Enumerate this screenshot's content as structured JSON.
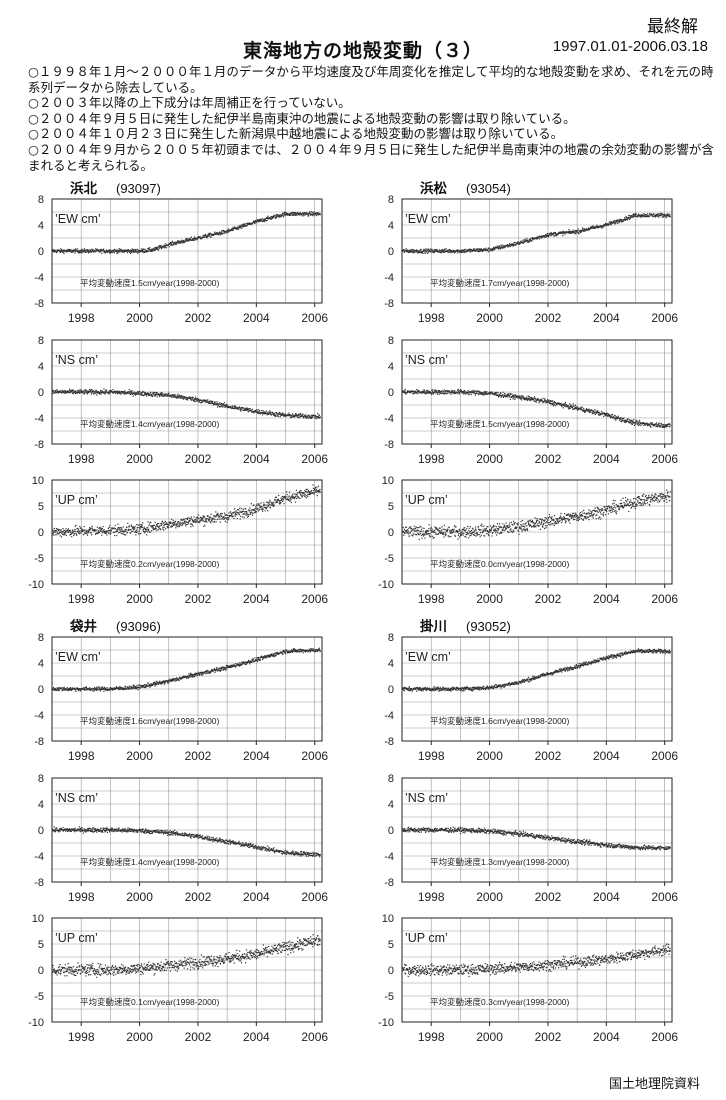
{
  "header": {
    "title": "東海地方の地殻変動（３）",
    "final_label": "最終解",
    "period": "1997.01.01-2006.03.18"
  },
  "notes": [
    "○１９９８年１月～２０００年１月のデータから平均速度及び年周変化を推定して平均的な地殻変動を求め、それを元の時系列データから除去している。",
    "○２００３年以降の上下成分は年周補正を行っていない。",
    "○２００４年９月５日に発生した紀伊半島南東沖の地震による地殻変動の影響は取り除いている。",
    "○２００４年１０月２３日に発生した新潟県中越地震による地殻変動の影響は取り除いている。",
    "○２００４年９月から２００５年初頭までは、２００４年９月５日に発生した紀伊半島南東沖の地震の余効変動の影響が含まれると考えられる。"
  ],
  "footer": {
    "source": "国土地理院資料"
  },
  "chart_data": [
    {
      "type": "scatter",
      "station": "浜北",
      "code": "(93097)",
      "component": "EW cm",
      "ylim": [
        -8,
        8
      ],
      "yticks": [
        8,
        4,
        0,
        -4,
        -8
      ],
      "xlim": [
        1997.0,
        2006.25
      ],
      "xticks": [
        1998,
        2000,
        2002,
        2004,
        2006
      ],
      "rate_text": "平均変動速度1.5cm/year(1998-2000)",
      "noise": 0.3,
      "trend": [
        [
          1997.0,
          0.0
        ],
        [
          1998.0,
          0.0
        ],
        [
          1999.0,
          0.0
        ],
        [
          2000.0,
          0.0
        ],
        [
          2000.5,
          0.2
        ],
        [
          2001.0,
          1.0
        ],
        [
          2002.0,
          2.0
        ],
        [
          2003.0,
          3.0
        ],
        [
          2004.0,
          4.5
        ],
        [
          2005.0,
          5.7
        ],
        [
          2006.2,
          5.7
        ]
      ]
    },
    {
      "type": "scatter",
      "station": "浜松",
      "code": "(93054)",
      "component": "EW cm",
      "ylim": [
        -8,
        8
      ],
      "yticks": [
        8,
        4,
        0,
        -4,
        -8
      ],
      "xlim": [
        1997.0,
        2006.25
      ],
      "xticks": [
        1998,
        2000,
        2002,
        2004,
        2006
      ],
      "rate_text": "平均変動速度1.7cm/year(1998-2000)",
      "noise": 0.3,
      "trend": [
        [
          1997.0,
          0.0
        ],
        [
          1999.0,
          0.0
        ],
        [
          2000.0,
          0.2
        ],
        [
          2001.0,
          1.2
        ],
        [
          2002.0,
          2.5
        ],
        [
          2003.0,
          3.0
        ],
        [
          2004.0,
          4.0
        ],
        [
          2005.0,
          5.5
        ],
        [
          2006.2,
          5.5
        ]
      ]
    },
    {
      "type": "scatter",
      "station": "浜北",
      "code": "",
      "component": "NS cm",
      "ylim": [
        -8,
        8
      ],
      "yticks": [
        8,
        4,
        0,
        -4,
        -8
      ],
      "xlim": [
        1997.0,
        2006.25
      ],
      "xticks": [
        1998,
        2000,
        2002,
        2004,
        2006
      ],
      "rate_text": "平均変動速度1.4cm/year(1998-2000)",
      "noise": 0.35,
      "trend": [
        [
          1997.0,
          0.0
        ],
        [
          1999.0,
          0.0
        ],
        [
          2000.0,
          -0.2
        ],
        [
          2001.0,
          -0.5
        ],
        [
          2002.0,
          -1.2
        ],
        [
          2003.0,
          -2.2
        ],
        [
          2004.0,
          -3.0
        ],
        [
          2005.0,
          -3.6
        ],
        [
          2006.2,
          -3.8
        ]
      ]
    },
    {
      "type": "scatter",
      "station": "浜松",
      "code": "",
      "component": "NS cm",
      "ylim": [
        -8,
        8
      ],
      "yticks": [
        8,
        4,
        0,
        -4,
        -8
      ],
      "xlim": [
        1997.0,
        2006.25
      ],
      "xticks": [
        1998,
        2000,
        2002,
        2004,
        2006
      ],
      "rate_text": "平均変動速度1.5cm/year(1998-2000)",
      "noise": 0.35,
      "trend": [
        [
          1997.0,
          0.0
        ],
        [
          1999.0,
          0.0
        ],
        [
          2000.0,
          -0.2
        ],
        [
          2001.0,
          -0.8
        ],
        [
          2002.0,
          -1.5
        ],
        [
          2003.0,
          -2.5
        ],
        [
          2004.0,
          -3.5
        ],
        [
          2005.0,
          -4.8
        ],
        [
          2006.2,
          -5.2
        ]
      ]
    },
    {
      "type": "scatter",
      "station": "浜北",
      "code": "",
      "component": "UP cm",
      "ylim": [
        -10,
        10
      ],
      "yticks": [
        10,
        5,
        0,
        -5,
        -10
      ],
      "xlim": [
        1997.0,
        2006.25
      ],
      "xticks": [
        1998,
        2000,
        2002,
        2004,
        2006
      ],
      "rate_text": "平均変動速度0.2cm/year(1998-2000)",
      "noise": 1.0,
      "trend": [
        [
          1997.0,
          0.0
        ],
        [
          1999.0,
          0.3
        ],
        [
          2000.0,
          0.5
        ],
        [
          2001.0,
          1.5
        ],
        [
          2002.0,
          2.3
        ],
        [
          2003.0,
          3.0
        ],
        [
          2004.0,
          4.5
        ],
        [
          2005.0,
          6.5
        ],
        [
          2006.2,
          8.0
        ]
      ]
    },
    {
      "type": "scatter",
      "station": "浜松",
      "code": "",
      "component": "UP cm",
      "ylim": [
        -10,
        10
      ],
      "yticks": [
        10,
        5,
        0,
        -5,
        -10
      ],
      "xlim": [
        1997.0,
        2006.25
      ],
      "xticks": [
        1998,
        2000,
        2002,
        2004,
        2006
      ],
      "rate_text": "平均変動速度0.0cm/year(1998-2000)",
      "noise": 1.1,
      "trend": [
        [
          1997.0,
          0.0
        ],
        [
          1999.0,
          0.0
        ],
        [
          2000.0,
          0.3
        ],
        [
          2001.0,
          1.0
        ],
        [
          2002.0,
          2.0
        ],
        [
          2003.0,
          3.0
        ],
        [
          2004.0,
          4.2
        ],
        [
          2005.0,
          5.8
        ],
        [
          2006.2,
          7.0
        ]
      ]
    },
    {
      "type": "scatter",
      "station": "袋井",
      "code": "(93096)",
      "component": "EW cm",
      "ylim": [
        -8,
        8
      ],
      "yticks": [
        8,
        4,
        0,
        -4,
        -8
      ],
      "xlim": [
        1997.0,
        2006.25
      ],
      "xticks": [
        1998,
        2000,
        2002,
        2004,
        2006
      ],
      "rate_text": "平均変動速度1.6cm/year(1998-2000)",
      "noise": 0.3,
      "trend": [
        [
          1997.0,
          0.0
        ],
        [
          1999.0,
          0.0
        ],
        [
          2000.0,
          0.3
        ],
        [
          2001.0,
          1.2
        ],
        [
          2002.0,
          2.3
        ],
        [
          2003.0,
          3.3
        ],
        [
          2004.0,
          4.5
        ],
        [
          2005.0,
          5.8
        ],
        [
          2006.2,
          6.0
        ]
      ]
    },
    {
      "type": "scatter",
      "station": "掛川",
      "code": "(93052)",
      "component": "EW cm",
      "ylim": [
        -8,
        8
      ],
      "yticks": [
        8,
        4,
        0,
        -4,
        -8
      ],
      "xlim": [
        1997.0,
        2006.25
      ],
      "xticks": [
        1998,
        2000,
        2002,
        2004,
        2006
      ],
      "rate_text": "平均変動速度1.6cm/year(1998-2000)",
      "noise": 0.3,
      "trend": [
        [
          1997.0,
          0.0
        ],
        [
          1999.0,
          0.0
        ],
        [
          2000.0,
          0.2
        ],
        [
          2001.0,
          1.0
        ],
        [
          2002.0,
          2.3
        ],
        [
          2003.0,
          3.5
        ],
        [
          2004.0,
          4.8
        ],
        [
          2005.0,
          5.8
        ],
        [
          2006.2,
          5.8
        ]
      ]
    },
    {
      "type": "scatter",
      "station": "袋井",
      "code": "",
      "component": "NS cm",
      "ylim": [
        -8,
        8
      ],
      "yticks": [
        8,
        4,
        0,
        -4,
        -8
      ],
      "xlim": [
        1997.0,
        2006.25
      ],
      "xticks": [
        1998,
        2000,
        2002,
        2004,
        2006
      ],
      "rate_text": "平均変動速度1.4cm/year(1998-2000)",
      "noise": 0.35,
      "trend": [
        [
          1997.0,
          0.0
        ],
        [
          1999.0,
          0.0
        ],
        [
          2000.0,
          -0.1
        ],
        [
          2001.0,
          -0.4
        ],
        [
          2002.0,
          -1.0
        ],
        [
          2003.0,
          -1.8
        ],
        [
          2004.0,
          -2.6
        ],
        [
          2005.0,
          -3.5
        ],
        [
          2006.2,
          -3.8
        ]
      ]
    },
    {
      "type": "scatter",
      "station": "掛川",
      "code": "",
      "component": "NS cm",
      "ylim": [
        -8,
        8
      ],
      "yticks": [
        8,
        4,
        0,
        -4,
        -8
      ],
      "xlim": [
        1997.0,
        2006.25
      ],
      "xticks": [
        1998,
        2000,
        2002,
        2004,
        2006
      ],
      "rate_text": "平均変動速度1.3cm/year(1998-2000)",
      "noise": 0.35,
      "trend": [
        [
          1997.0,
          0.0
        ],
        [
          1999.0,
          0.0
        ],
        [
          2000.0,
          -0.2
        ],
        [
          2001.0,
          -0.6
        ],
        [
          2002.0,
          -1.2
        ],
        [
          2003.0,
          -1.8
        ],
        [
          2004.0,
          -2.3
        ],
        [
          2005.0,
          -2.7
        ],
        [
          2006.2,
          -2.8
        ]
      ]
    },
    {
      "type": "scatter",
      "station": "袋井",
      "code": "",
      "component": "UP cm",
      "ylim": [
        -10,
        10
      ],
      "yticks": [
        10,
        5,
        0,
        -5,
        -10
      ],
      "xlim": [
        1997.0,
        2006.25
      ],
      "xticks": [
        1998,
        2000,
        2002,
        2004,
        2006
      ],
      "rate_text": "平均変動速度0.1cm/year(1998-2000)",
      "noise": 1.1,
      "trend": [
        [
          1997.0,
          0.0
        ],
        [
          1999.0,
          0.0
        ],
        [
          2000.0,
          0.3
        ],
        [
          2001.0,
          0.8
        ],
        [
          2002.0,
          1.5
        ],
        [
          2003.0,
          2.2
        ],
        [
          2004.0,
          3.0
        ],
        [
          2005.0,
          4.3
        ],
        [
          2006.2,
          5.8
        ]
      ]
    },
    {
      "type": "scatter",
      "station": "掛川",
      "code": "",
      "component": "UP cm",
      "ylim": [
        -10,
        10
      ],
      "yticks": [
        10,
        5,
        0,
        -5,
        -10
      ],
      "xlim": [
        1997.0,
        2006.25
      ],
      "xticks": [
        1998,
        2000,
        2002,
        2004,
        2006
      ],
      "rate_text": "平均変動速度0.3cm/year(1998-2000)",
      "noise": 1.0,
      "trend": [
        [
          1997.0,
          0.0
        ],
        [
          1999.0,
          0.0
        ],
        [
          2000.0,
          0.2
        ],
        [
          2001.0,
          0.5
        ],
        [
          2002.0,
          1.0
        ],
        [
          2003.0,
          1.5
        ],
        [
          2004.0,
          2.0
        ],
        [
          2005.0,
          3.0
        ],
        [
          2006.2,
          4.0
        ]
      ]
    }
  ]
}
